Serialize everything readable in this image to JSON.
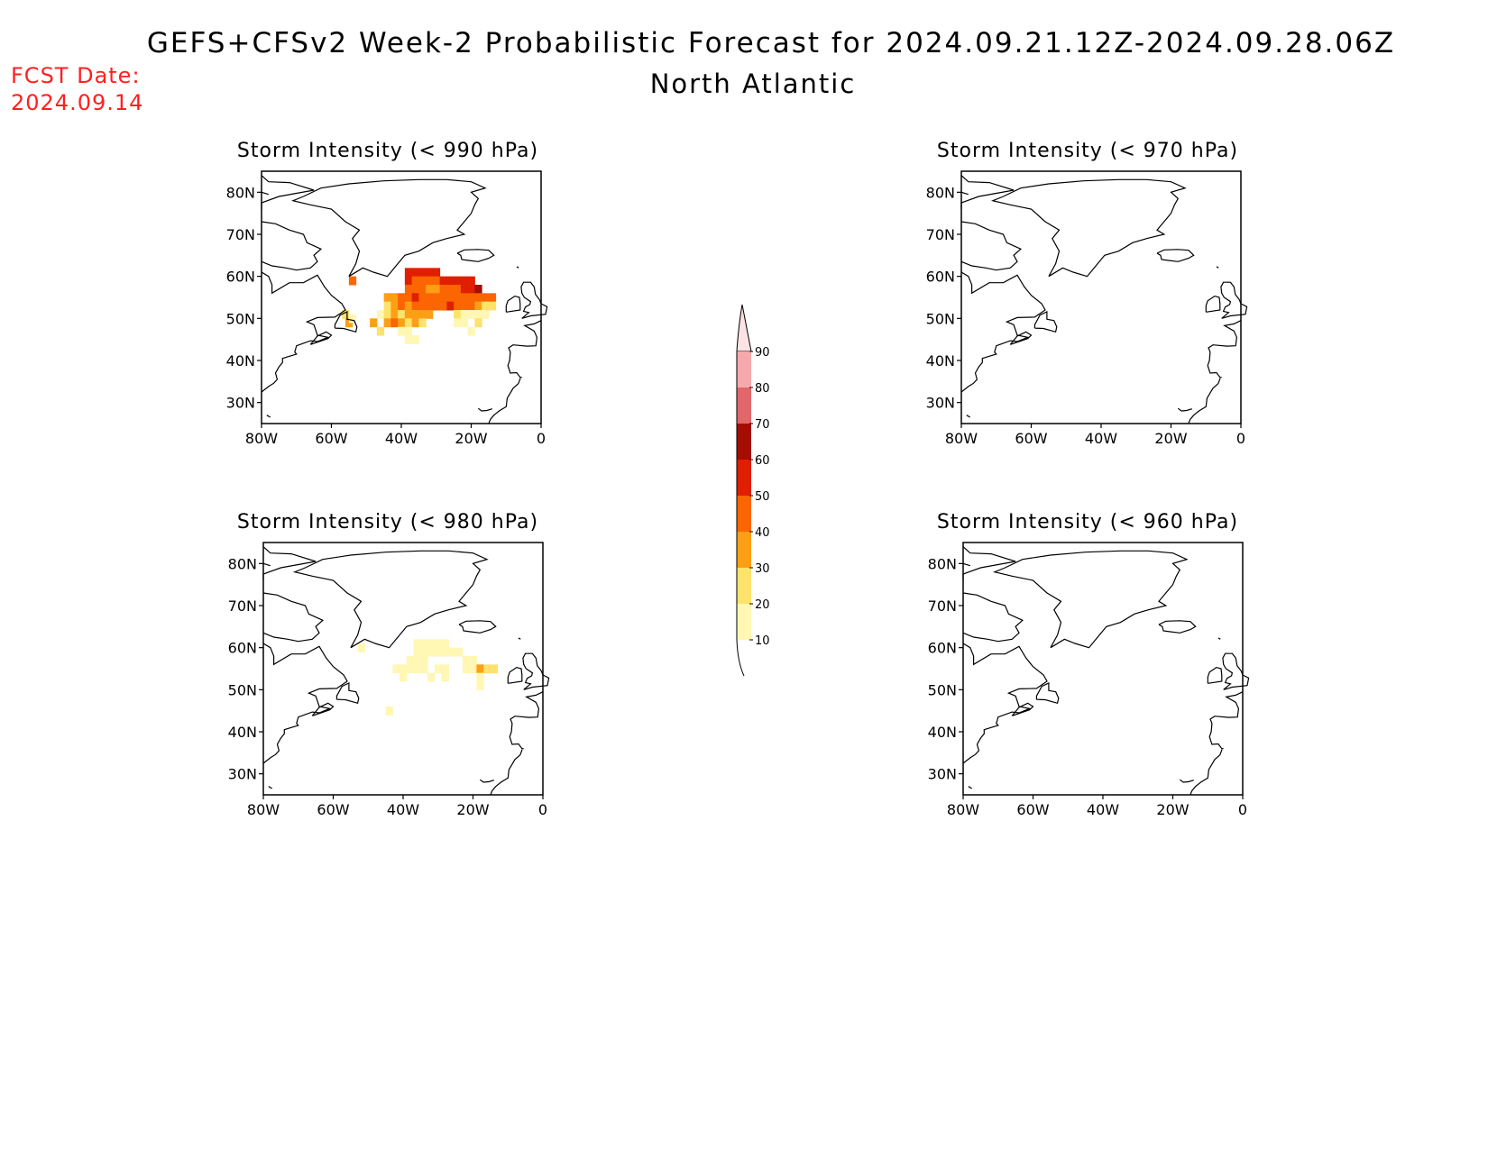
{
  "header": {
    "title": "GEFS+CFSv2 Week-2 Probabilistic Forecast for 2024.09.21.12Z-2024.09.28.06Z",
    "region": "North Atlantic",
    "fcst_label": "FCST Date:",
    "fcst_date": "2024.09.14"
  },
  "colors": {
    "text": "#000000",
    "fcst": "#ff2020",
    "levels": [
      "#fff7b3",
      "#fde26c",
      "#fd9f14",
      "#fb6502",
      "#e01f01",
      "#a60d01",
      "#e0676a",
      "#f6a9ac",
      "#fde2e4"
    ]
  },
  "map_axes": {
    "lon_range": [
      -80,
      0
    ],
    "lat_range": [
      25,
      85
    ],
    "lon_ticks": [
      "80W",
      "60W",
      "40W",
      "20W",
      "0"
    ],
    "lat_ticks": [
      "80N",
      "70N",
      "60N",
      "50N",
      "40N",
      "30N"
    ]
  },
  "panels": [
    {
      "title": "Storm Intensity (< 990 hPa)",
      "cells": [
        {
          "lon": -54,
          "lat": 59,
          "level": 4
        },
        {
          "lon": -56,
          "lat": 51,
          "level": 2
        },
        {
          "lon": -55,
          "lat": 49,
          "level": 3
        },
        {
          "lon": -54,
          "lat": 50,
          "level": 1
        },
        {
          "lon": -38,
          "lat": 61,
          "level": 5
        },
        {
          "lon": -36,
          "lat": 61,
          "level": 5
        },
        {
          "lon": -34,
          "lat": 61,
          "level": 5
        },
        {
          "lon": -32,
          "lat": 61,
          "level": 5
        },
        {
          "lon": -30,
          "lat": 61,
          "level": 5
        },
        {
          "lon": -38,
          "lat": 59,
          "level": 5
        },
        {
          "lon": -36,
          "lat": 59,
          "level": 4
        },
        {
          "lon": -34,
          "lat": 59,
          "level": 4
        },
        {
          "lon": -32,
          "lat": 59,
          "level": 4
        },
        {
          "lon": -30,
          "lat": 59,
          "level": 4
        },
        {
          "lon": -28,
          "lat": 59,
          "level": 5
        },
        {
          "lon": -26,
          "lat": 59,
          "level": 5
        },
        {
          "lon": -24,
          "lat": 59,
          "level": 5
        },
        {
          "lon": -22,
          "lat": 59,
          "level": 5
        },
        {
          "lon": -20,
          "lat": 59,
          "level": 5
        },
        {
          "lon": -38,
          "lat": 57,
          "level": 4
        },
        {
          "lon": -36,
          "lat": 57,
          "level": 4
        },
        {
          "lon": -34,
          "lat": 57,
          "level": 4
        },
        {
          "lon": -32,
          "lat": 57,
          "level": 3
        },
        {
          "lon": -30,
          "lat": 57,
          "level": 3
        },
        {
          "lon": -28,
          "lat": 57,
          "level": 4
        },
        {
          "lon": -26,
          "lat": 57,
          "level": 4
        },
        {
          "lon": -24,
          "lat": 57,
          "level": 4
        },
        {
          "lon": -22,
          "lat": 57,
          "level": 5
        },
        {
          "lon": -20,
          "lat": 57,
          "level": 5
        },
        {
          "lon": -18,
          "lat": 57,
          "level": 6
        },
        {
          "lon": -44,
          "lat": 55,
          "level": 3
        },
        {
          "lon": -42,
          "lat": 55,
          "level": 3
        },
        {
          "lon": -40,
          "lat": 55,
          "level": 4
        },
        {
          "lon": -38,
          "lat": 55,
          "level": 4
        },
        {
          "lon": -36,
          "lat": 55,
          "level": 5
        },
        {
          "lon": -34,
          "lat": 55,
          "level": 4
        },
        {
          "lon": -32,
          "lat": 55,
          "level": 4
        },
        {
          "lon": -30,
          "lat": 55,
          "level": 4
        },
        {
          "lon": -28,
          "lat": 55,
          "level": 4
        },
        {
          "lon": -26,
          "lat": 55,
          "level": 4
        },
        {
          "lon": -24,
          "lat": 55,
          "level": 4
        },
        {
          "lon": -22,
          "lat": 55,
          "level": 4
        },
        {
          "lon": -20,
          "lat": 55,
          "level": 4
        },
        {
          "lon": -18,
          "lat": 55,
          "level": 4
        },
        {
          "lon": -16,
          "lat": 55,
          "level": 4
        },
        {
          "lon": -14,
          "lat": 55,
          "level": 4
        },
        {
          "lon": -44,
          "lat": 53,
          "level": 2
        },
        {
          "lon": -42,
          "lat": 53,
          "level": 3
        },
        {
          "lon": -40,
          "lat": 53,
          "level": 4
        },
        {
          "lon": -38,
          "lat": 53,
          "level": 3
        },
        {
          "lon": -36,
          "lat": 53,
          "level": 4
        },
        {
          "lon": -34,
          "lat": 53,
          "level": 4
        },
        {
          "lon": -32,
          "lat": 53,
          "level": 4
        },
        {
          "lon": -30,
          "lat": 53,
          "level": 4
        },
        {
          "lon": -28,
          "lat": 53,
          "level": 4
        },
        {
          "lon": -26,
          "lat": 53,
          "level": 5
        },
        {
          "lon": -24,
          "lat": 53,
          "level": 4
        },
        {
          "lon": -22,
          "lat": 53,
          "level": 4
        },
        {
          "lon": -20,
          "lat": 53,
          "level": 4
        },
        {
          "lon": -18,
          "lat": 53,
          "level": 3
        },
        {
          "lon": -16,
          "lat": 53,
          "level": 2
        },
        {
          "lon": -14,
          "lat": 53,
          "level": 2
        },
        {
          "lon": -46,
          "lat": 51,
          "level": 1
        },
        {
          "lon": -44,
          "lat": 51,
          "level": 2
        },
        {
          "lon": -42,
          "lat": 51,
          "level": 3
        },
        {
          "lon": -40,
          "lat": 51,
          "level": 2
        },
        {
          "lon": -38,
          "lat": 51,
          "level": 3
        },
        {
          "lon": -36,
          "lat": 51,
          "level": 3
        },
        {
          "lon": -34,
          "lat": 51,
          "level": 3
        },
        {
          "lon": -32,
          "lat": 51,
          "level": 3
        },
        {
          "lon": -24,
          "lat": 51,
          "level": 2
        },
        {
          "lon": -22,
          "lat": 51,
          "level": 1
        },
        {
          "lon": -20,
          "lat": 51,
          "level": 1
        },
        {
          "lon": -18,
          "lat": 51,
          "level": 1
        },
        {
          "lon": -16,
          "lat": 51,
          "level": 1
        },
        {
          "lon": -48,
          "lat": 49,
          "level": 3
        },
        {
          "lon": -44,
          "lat": 49,
          "level": 3
        },
        {
          "lon": -42,
          "lat": 49,
          "level": 4
        },
        {
          "lon": -40,
          "lat": 49,
          "level": 3
        },
        {
          "lon": -38,
          "lat": 49,
          "level": 2
        },
        {
          "lon": -36,
          "lat": 49,
          "level": 3
        },
        {
          "lon": -34,
          "lat": 49,
          "level": 2
        },
        {
          "lon": -24,
          "lat": 49,
          "level": 1
        },
        {
          "lon": -22,
          "lat": 49,
          "level": 1
        },
        {
          "lon": -18,
          "lat": 49,
          "level": 2
        },
        {
          "lon": -46,
          "lat": 47,
          "level": 2
        },
        {
          "lon": -40,
          "lat": 47,
          "level": 1
        },
        {
          "lon": -38,
          "lat": 47,
          "level": 1
        },
        {
          "lon": -20,
          "lat": 47,
          "level": 1
        },
        {
          "lon": -38,
          "lat": 45,
          "level": 1
        },
        {
          "lon": -36,
          "lat": 45,
          "level": 1
        }
      ]
    },
    {
      "title": "Storm Intensity (< 970 hPa)",
      "cells": []
    },
    {
      "title": "Storm Intensity (< 980 hPa)",
      "cells": [
        {
          "lon": -52,
          "lat": 60,
          "level": 1
        },
        {
          "lon": -36,
          "lat": 61,
          "level": 1
        },
        {
          "lon": -34,
          "lat": 61,
          "level": 1
        },
        {
          "lon": -32,
          "lat": 61,
          "level": 1
        },
        {
          "lon": -30,
          "lat": 61,
          "level": 1
        },
        {
          "lon": -28,
          "lat": 61,
          "level": 1
        },
        {
          "lon": -36,
          "lat": 59,
          "level": 1
        },
        {
          "lon": -34,
          "lat": 59,
          "level": 1
        },
        {
          "lon": -32,
          "lat": 59,
          "level": 1
        },
        {
          "lon": -30,
          "lat": 59,
          "level": 1
        },
        {
          "lon": -28,
          "lat": 59,
          "level": 1
        },
        {
          "lon": -26,
          "lat": 59,
          "level": 1
        },
        {
          "lon": -24,
          "lat": 59,
          "level": 1
        },
        {
          "lon": -38,
          "lat": 57,
          "level": 1
        },
        {
          "lon": -36,
          "lat": 57,
          "level": 1
        },
        {
          "lon": -34,
          "lat": 57,
          "level": 1
        },
        {
          "lon": -22,
          "lat": 57,
          "level": 1
        },
        {
          "lon": -20,
          "lat": 57,
          "level": 1
        },
        {
          "lon": -42,
          "lat": 55,
          "level": 1
        },
        {
          "lon": -40,
          "lat": 55,
          "level": 1
        },
        {
          "lon": -38,
          "lat": 55,
          "level": 1
        },
        {
          "lon": -36,
          "lat": 55,
          "level": 1
        },
        {
          "lon": -34,
          "lat": 55,
          "level": 1
        },
        {
          "lon": -30,
          "lat": 55,
          "level": 1
        },
        {
          "lon": -28,
          "lat": 55,
          "level": 1
        },
        {
          "lon": -22,
          "lat": 55,
          "level": 1
        },
        {
          "lon": -20,
          "lat": 55,
          "level": 1
        },
        {
          "lon": -18,
          "lat": 55,
          "level": 3
        },
        {
          "lon": -16,
          "lat": 55,
          "level": 2
        },
        {
          "lon": -14,
          "lat": 55,
          "level": 2
        },
        {
          "lon": -40,
          "lat": 53,
          "level": 1
        },
        {
          "lon": -32,
          "lat": 53,
          "level": 1
        },
        {
          "lon": -28,
          "lat": 53,
          "level": 1
        },
        {
          "lon": -18,
          "lat": 53,
          "level": 1
        },
        {
          "lon": -18,
          "lat": 51,
          "level": 1
        },
        {
          "lon": -44,
          "lat": 45,
          "level": 1
        }
      ]
    },
    {
      "title": "Storm Intensity (< 960 hPa)",
      "cells": []
    }
  ],
  "colorbar": {
    "labels": [
      "10",
      "20",
      "30",
      "40",
      "50",
      "60",
      "70",
      "80",
      "90"
    ]
  }
}
